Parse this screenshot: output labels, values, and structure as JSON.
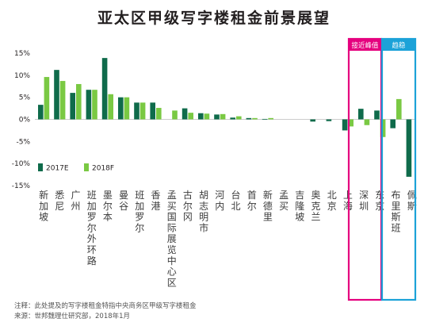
{
  "title": "亚太区甲级写字楼租金前景展望",
  "chart_data": {
    "type": "bar",
    "title": "亚太区甲级写字楼租金前景展望",
    "ylim": [
      -15,
      15
    ],
    "yticks": [
      "15%",
      "10%",
      "5%",
      "0%",
      "-5%",
      "-10%",
      "-15%"
    ],
    "grid": false,
    "legend_position": "bottom-left",
    "categories": [
      "新加坡",
      "悉尼",
      "广州",
      "班加罗尔外环路",
      "墨尔本",
      "曼谷",
      "班加罗尔",
      "香港",
      "孟买国际展览中心区",
      "古尔冈",
      "胡志明市",
      "河内",
      "台北",
      "首尔",
      "新德里",
      "孟买",
      "吉隆坡",
      "奥克兰",
      "北京",
      "上海",
      "深圳",
      "东京",
      "布里斯班",
      "佩斯"
    ],
    "series": [
      {
        "name": "2017E",
        "color": "#0f6b4b",
        "values": [
          3.3,
          11.2,
          6.0,
          6.7,
          13.9,
          5.0,
          3.8,
          3.8,
          0.0,
          2.5,
          1.4,
          1.1,
          0.4,
          0.3,
          0.1,
          0.0,
          0.0,
          -0.5,
          -0.4,
          -2.5,
          2.4,
          2.0,
          -2.0,
          -13.0
        ]
      },
      {
        "name": "2018F",
        "color": "#7ac943",
        "values": [
          9.6,
          8.7,
          8.0,
          6.7,
          5.7,
          5.0,
          3.8,
          2.6,
          2.0,
          1.5,
          1.3,
          1.2,
          0.7,
          0.3,
          0.3,
          0.0,
          0.0,
          0.0,
          0.0,
          -1.6,
          -1.3,
          -4.0,
          4.6,
          0.0
        ]
      }
    ],
    "highlight_groups": [
      {
        "label": "接近峰值",
        "color": "#e5007e"
      },
      {
        "label": "趋稳",
        "color": "#1ca2d8"
      }
    ]
  },
  "notes": {
    "line1": "注释：此处提及的写字楼租金特指中央商务区甲级写字楼租金",
    "line2": "来源：世邦魏理仕研究部，2018年1月"
  }
}
